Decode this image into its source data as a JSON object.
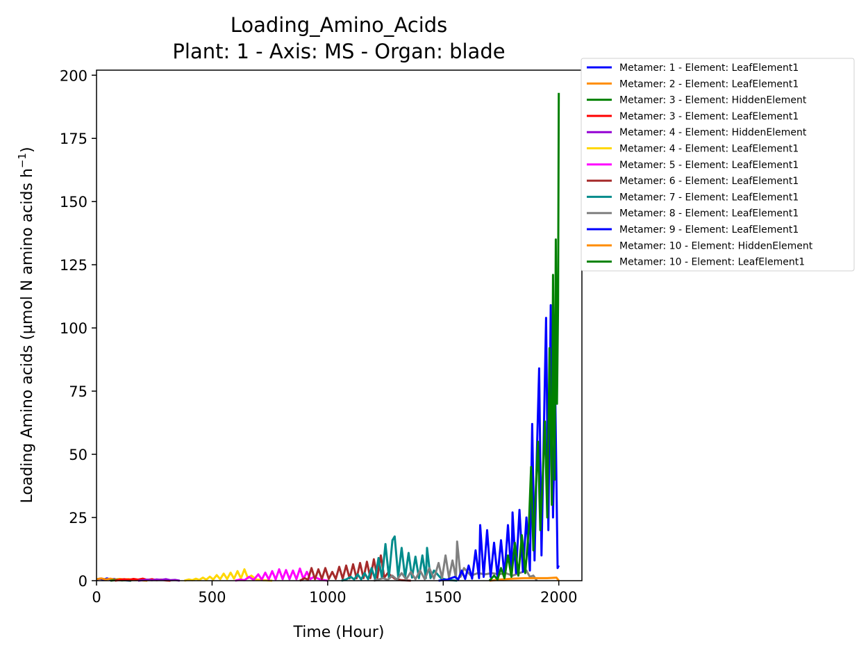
{
  "chart_data": {
    "type": "line",
    "title": "Loading_Amino_Acids",
    "subtitle": "Plant: 1 - Axis: MS - Organ: blade",
    "xlabel": "Time (Hour)",
    "ylabel": "Loading Amino acids (µmol N amino acids h",
    "ylabel_sup": "−1",
    "ylabel_close": ")",
    "xlim": [
      0,
      2100
    ],
    "ylim": [
      0,
      202
    ],
    "xticks": [
      0,
      500,
      1000,
      1500,
      2000
    ],
    "yticks": [
      0,
      25,
      50,
      75,
      100,
      125,
      150,
      175,
      200
    ],
    "grid": false,
    "legend_position": "outside-top-right",
    "series": [
      {
        "name": "Metamer: 1 - Element: LeafElement1",
        "color": "#0000ff",
        "points": [
          [
            0,
            0.5
          ],
          [
            15,
            0.8
          ],
          [
            30,
            0.4
          ],
          [
            45,
            0.9
          ],
          [
            60,
            0.5
          ],
          [
            75,
            0.7
          ],
          [
            90,
            0.3
          ],
          [
            110,
            0.4
          ],
          [
            130,
            0.1
          ],
          [
            150,
            0
          ]
        ]
      },
      {
        "name": "Metamer: 2 - Element: LeafElement1",
        "color": "#ff8c00",
        "points": [
          [
            0,
            0.6
          ],
          [
            20,
            0.9
          ],
          [
            40,
            0.5
          ],
          [
            60,
            0.8
          ],
          [
            80,
            0.4
          ],
          [
            100,
            0.7
          ],
          [
            120,
            0.5
          ],
          [
            140,
            0.6
          ],
          [
            160,
            0.3
          ],
          [
            180,
            0.4
          ],
          [
            200,
            0.1
          ],
          [
            220,
            0
          ]
        ]
      },
      {
        "name": "Metamer: 3 - Element: HiddenElement",
        "color": "#008000",
        "points": [
          [
            60,
            0
          ],
          [
            90,
            0.3
          ],
          [
            110,
            0.1
          ],
          [
            130,
            0.2
          ],
          [
            150,
            0
          ]
        ]
      },
      {
        "name": "Metamer: 3 - Element: LeafElement1",
        "color": "#ff0000",
        "points": [
          [
            80,
            0
          ],
          [
            100,
            0.3
          ],
          [
            120,
            0.6
          ],
          [
            140,
            0.3
          ],
          [
            160,
            0.7
          ],
          [
            180,
            0.4
          ],
          [
            200,
            0.8
          ],
          [
            220,
            0.3
          ],
          [
            240,
            0.6
          ],
          [
            260,
            0.2
          ],
          [
            280,
            0.4
          ],
          [
            300,
            0.1
          ],
          [
            320,
            0
          ]
        ]
      },
      {
        "name": "Metamer: 4 - Element: HiddenElement",
        "color": "#9400d3",
        "points": [
          [
            180,
            0
          ],
          [
            200,
            0.2
          ],
          [
            220,
            0.4
          ],
          [
            240,
            0.2
          ],
          [
            260,
            0.5
          ],
          [
            280,
            0.3
          ],
          [
            300,
            0.6
          ],
          [
            320,
            0.2
          ],
          [
            340,
            0.3
          ],
          [
            360,
            0
          ]
        ]
      },
      {
        "name": "Metamer: 4 - Element: LeafElement1",
        "color": "#ffd700",
        "points": [
          [
            380,
            0
          ],
          [
            400,
            0.5
          ],
          [
            415,
            0.2
          ],
          [
            430,
            0.8
          ],
          [
            445,
            0.3
          ],
          [
            460,
            1.2
          ],
          [
            475,
            0.4
          ],
          [
            490,
            1.6
          ],
          [
            505,
            0.5
          ],
          [
            520,
            2.2
          ],
          [
            535,
            0.6
          ],
          [
            550,
            2.8
          ],
          [
            565,
            0.7
          ],
          [
            580,
            3.2
          ],
          [
            595,
            0.8
          ],
          [
            610,
            3.8
          ],
          [
            625,
            0.9
          ],
          [
            640,
            4.5
          ],
          [
            655,
            1.0
          ],
          [
            670,
            2.0
          ],
          [
            690,
            0.5
          ],
          [
            720,
            0.2
          ],
          [
            760,
            0
          ]
        ]
      },
      {
        "name": "Metamer: 5 - Element: LeafElement1",
        "color": "#ff00ff",
        "points": [
          [
            600,
            0
          ],
          [
            620,
            0.4
          ],
          [
            640,
            0.2
          ],
          [
            660,
            1.5
          ],
          [
            680,
            0.3
          ],
          [
            700,
            2.5
          ],
          [
            715,
            0.4
          ],
          [
            730,
            3.2
          ],
          [
            745,
            0.5
          ],
          [
            760,
            3.8
          ],
          [
            775,
            0.5
          ],
          [
            790,
            4.5
          ],
          [
            805,
            0.6
          ],
          [
            820,
            4.2
          ],
          [
            835,
            0.6
          ],
          [
            850,
            4.0
          ],
          [
            865,
            0.6
          ],
          [
            880,
            4.8
          ],
          [
            895,
            0.7
          ],
          [
            910,
            3.5
          ],
          [
            925,
            0.6
          ],
          [
            940,
            1.5
          ],
          [
            970,
            0.4
          ],
          [
            1000,
            0
          ]
        ]
      },
      {
        "name": "Metamer: 6 - Element: LeafElement1",
        "color": "#a52a2a",
        "points": [
          [
            880,
            0
          ],
          [
            900,
            1.0
          ],
          [
            915,
            0.4
          ],
          [
            930,
            5.0
          ],
          [
            945,
            0.6
          ],
          [
            960,
            4.5
          ],
          [
            975,
            0.7
          ],
          [
            990,
            5.0
          ],
          [
            1005,
            0.7
          ],
          [
            1020,
            3.5
          ],
          [
            1035,
            0.7
          ],
          [
            1050,
            5.5
          ],
          [
            1065,
            0.8
          ],
          [
            1080,
            6.0
          ],
          [
            1095,
            0.9
          ],
          [
            1110,
            6.5
          ],
          [
            1125,
            0.9
          ],
          [
            1140,
            7.0
          ],
          [
            1155,
            1.0
          ],
          [
            1170,
            7.5
          ],
          [
            1185,
            1.0
          ],
          [
            1200,
            8.5
          ],
          [
            1215,
            1.1
          ],
          [
            1230,
            10.0
          ],
          [
            1245,
            1.2
          ],
          [
            1260,
            3.0
          ],
          [
            1290,
            0.8
          ],
          [
            1320,
            0.2
          ],
          [
            1360,
            0
          ]
        ]
      },
      {
        "name": "Metamer: 7 - Element: LeafElement1",
        "color": "#008b8b",
        "points": [
          [
            1060,
            0
          ],
          [
            1080,
            0.5
          ],
          [
            1100,
            1.5
          ],
          [
            1115,
            0.5
          ],
          [
            1130,
            2.5
          ],
          [
            1145,
            0.5
          ],
          [
            1160,
            3.0
          ],
          [
            1175,
            0.6
          ],
          [
            1190,
            5.0
          ],
          [
            1205,
            0.7
          ],
          [
            1220,
            9.0
          ],
          [
            1235,
            1.0
          ],
          [
            1250,
            14.5
          ],
          [
            1265,
            1.2
          ],
          [
            1280,
            16.0
          ],
          [
            1290,
            17.5
          ],
          [
            1305,
            1.5
          ],
          [
            1320,
            13.0
          ],
          [
            1335,
            1.2
          ],
          [
            1350,
            11.0
          ],
          [
            1365,
            1.2
          ],
          [
            1380,
            9.5
          ],
          [
            1395,
            1.0
          ],
          [
            1410,
            10.0
          ],
          [
            1425,
            1.0
          ],
          [
            1430,
            13.0
          ],
          [
            1445,
            1.0
          ],
          [
            1460,
            4.0
          ],
          [
            1490,
            1.0
          ],
          [
            1520,
            0.3
          ],
          [
            1560,
            0
          ]
        ]
      },
      {
        "name": "Metamer: 8 - Element: LeafElement1",
        "color": "#808080",
        "points": [
          [
            1200,
            0
          ],
          [
            1240,
            1.0
          ],
          [
            1260,
            0.3
          ],
          [
            1280,
            2.0
          ],
          [
            1300,
            0.4
          ],
          [
            1320,
            3.0
          ],
          [
            1340,
            0.5
          ],
          [
            1360,
            3.5
          ],
          [
            1380,
            0.6
          ],
          [
            1400,
            4.0
          ],
          [
            1420,
            0.6
          ],
          [
            1440,
            5.0
          ],
          [
            1460,
            0.8
          ],
          [
            1480,
            7.0
          ],
          [
            1495,
            1.0
          ],
          [
            1510,
            10.0
          ],
          [
            1525,
            1.2
          ],
          [
            1540,
            8.0
          ],
          [
            1555,
            1.2
          ],
          [
            1560,
            15.5
          ],
          [
            1575,
            1.5
          ],
          [
            1590,
            5.0
          ],
          [
            1620,
            2.0
          ],
          [
            1650,
            3.0
          ],
          [
            1680,
            2.5
          ],
          [
            1710,
            3.0
          ],
          [
            1740,
            2.5
          ],
          [
            1770,
            3.0
          ],
          [
            1800,
            2.0
          ],
          [
            1830,
            3.0
          ],
          [
            1860,
            4.0
          ],
          [
            1875,
            1.5
          ],
          [
            1890,
            2.0
          ],
          [
            1905,
            0
          ]
        ]
      },
      {
        "name": "Metamer: 9 - Element: LeafElement1",
        "color": "#0000ff",
        "points": [
          [
            1480,
            0
          ],
          [
            1520,
            0.5
          ],
          [
            1550,
            1.5
          ],
          [
            1565,
            0.5
          ],
          [
            1580,
            4.0
          ],
          [
            1595,
            0.7
          ],
          [
            1610,
            6.0
          ],
          [
            1625,
            0.8
          ],
          [
            1640,
            12.0
          ],
          [
            1655,
            1.0
          ],
          [
            1660,
            22.0
          ],
          [
            1675,
            1.5
          ],
          [
            1690,
            20.0
          ],
          [
            1705,
            1.5
          ],
          [
            1720,
            15.0
          ],
          [
            1735,
            1.5
          ],
          [
            1750,
            16.0
          ],
          [
            1765,
            2.0
          ],
          [
            1780,
            22.0
          ],
          [
            1795,
            2.0
          ],
          [
            1800,
            27.0
          ],
          [
            1815,
            3.0
          ],
          [
            1830,
            28.0
          ],
          [
            1845,
            3.5
          ],
          [
            1860,
            25.0
          ],
          [
            1875,
            4.0
          ],
          [
            1885,
            62.0
          ],
          [
            1895,
            8.0
          ],
          [
            1905,
            50.0
          ],
          [
            1915,
            84.0
          ],
          [
            1925,
            10.0
          ],
          [
            1935,
            58.0
          ],
          [
            1945,
            104.0
          ],
          [
            1955,
            20.0
          ],
          [
            1965,
            109.0
          ],
          [
            1975,
            25.0
          ],
          [
            1985,
            72.0
          ],
          [
            1995,
            5.0
          ],
          [
            2000,
            6.0
          ]
        ]
      },
      {
        "name": "Metamer: 10 - Element: HiddenElement",
        "color": "#ff8c00",
        "points": [
          [
            1700,
            0
          ],
          [
            1750,
            0.5
          ],
          [
            1800,
            0.8
          ],
          [
            1850,
            1.0
          ],
          [
            1900,
            1.0
          ],
          [
            1950,
            1.0
          ],
          [
            1990,
            1.2
          ],
          [
            2000,
            0
          ]
        ]
      },
      {
        "name": "Metamer: 10 - Element: LeafElement1",
        "color": "#008000",
        "points": [
          [
            1700,
            0
          ],
          [
            1720,
            2.0
          ],
          [
            1735,
            0.5
          ],
          [
            1750,
            5.0
          ],
          [
            1765,
            1.0
          ],
          [
            1780,
            10.0
          ],
          [
            1795,
            1.5
          ],
          [
            1810,
            15.0
          ],
          [
            1825,
            2.0
          ],
          [
            1840,
            18.0
          ],
          [
            1855,
            3.0
          ],
          [
            1870,
            20.0
          ],
          [
            1880,
            45.0
          ],
          [
            1890,
            12.0
          ],
          [
            1900,
            35.0
          ],
          [
            1910,
            55.0
          ],
          [
            1920,
            20.0
          ],
          [
            1930,
            40.0
          ],
          [
            1940,
            63.0
          ],
          [
            1950,
            25.0
          ],
          [
            1960,
            92.0
          ],
          [
            1970,
            30.0
          ],
          [
            1975,
            121.0
          ],
          [
            1982,
            40.0
          ],
          [
            1987,
            135.0
          ],
          [
            1992,
            70.0
          ],
          [
            1997,
            110.0
          ],
          [
            2000,
            193.0
          ]
        ]
      }
    ]
  }
}
